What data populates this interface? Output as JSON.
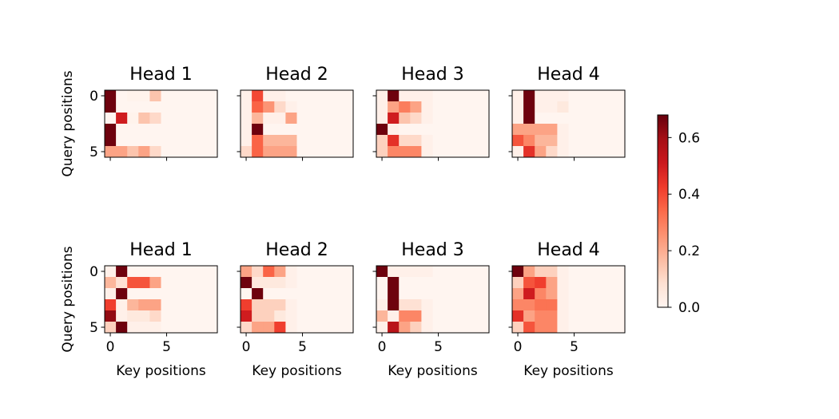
{
  "chart_data": {
    "type": "heatmap",
    "colormap": "Reds",
    "value_range": [
      0.0,
      0.68
    ],
    "colorbar": {
      "ticks": [
        0.0,
        0.2,
        0.4,
        0.6
      ],
      "tick_labels": [
        "0.0",
        "0.2",
        "0.4",
        "0.6"
      ]
    },
    "xlabel": "Key positions",
    "ylabel": "Query positions",
    "x_tick_labels": [
      "0",
      "5"
    ],
    "y_tick_labels": [
      "0",
      "5"
    ],
    "key_positions": 10,
    "query_positions": 6,
    "panels": [
      {
        "title": "Head 1",
        "row": 0,
        "matrix": [
          [
            0.67,
            0.0,
            0.01,
            0.01,
            0.15,
            0,
            0,
            0,
            0,
            0
          ],
          [
            0.67,
            0.0,
            0.0,
            0.0,
            0.0,
            0,
            0,
            0,
            0,
            0
          ],
          [
            0.0,
            0.5,
            0.01,
            0.15,
            0.1,
            0,
            0,
            0,
            0,
            0
          ],
          [
            0.67,
            0.0,
            0.0,
            0.0,
            0.0,
            0,
            0,
            0,
            0,
            0
          ],
          [
            0.67,
            0.0,
            0.0,
            0.0,
            0.0,
            0,
            0,
            0,
            0,
            0
          ],
          [
            0.22,
            0.22,
            0.15,
            0.22,
            0.1,
            0,
            0,
            0,
            0,
            0
          ]
        ]
      },
      {
        "title": "Head 2",
        "row": 0,
        "matrix": [
          [
            0.02,
            0.4,
            0.02,
            0.02,
            0.0,
            0,
            0,
            0,
            0,
            0
          ],
          [
            0.02,
            0.35,
            0.25,
            0.1,
            0.02,
            0,
            0,
            0,
            0,
            0
          ],
          [
            0.02,
            0.18,
            0.02,
            0.02,
            0.22,
            0,
            0,
            0,
            0,
            0
          ],
          [
            0.02,
            0.67,
            0.0,
            0.0,
            0.0,
            0,
            0,
            0,
            0,
            0
          ],
          [
            0.02,
            0.35,
            0.18,
            0.18,
            0.18,
            0,
            0,
            0,
            0,
            0
          ],
          [
            0.1,
            0.35,
            0.22,
            0.22,
            0.22,
            0,
            0,
            0,
            0,
            0
          ]
        ]
      },
      {
        "title": "Head 3",
        "row": 0,
        "matrix": [
          [
            0.02,
            0.67,
            0.02,
            0.02,
            0.02,
            0,
            0,
            0,
            0,
            0
          ],
          [
            0.02,
            0.22,
            0.3,
            0.22,
            0.02,
            0,
            0,
            0,
            0,
            0
          ],
          [
            0.02,
            0.5,
            0.15,
            0.1,
            0.02,
            0,
            0,
            0,
            0,
            0
          ],
          [
            0.67,
            0.02,
            0.0,
            0.0,
            0.0,
            0,
            0,
            0,
            0,
            0
          ],
          [
            0.12,
            0.45,
            0.1,
            0.1,
            0.02,
            0,
            0,
            0,
            0,
            0
          ],
          [
            0.12,
            0.28,
            0.28,
            0.28,
            0.02,
            0,
            0,
            0,
            0,
            0
          ]
        ]
      },
      {
        "title": "Head 4",
        "row": 0,
        "matrix": [
          [
            0.02,
            0.67,
            0.02,
            0.02,
            0.02,
            0,
            0,
            0,
            0,
            0
          ],
          [
            0.02,
            0.67,
            0.02,
            0.02,
            0.05,
            0,
            0,
            0,
            0,
            0
          ],
          [
            0.02,
            0.67,
            0.0,
            0.0,
            0.0,
            0,
            0,
            0,
            0,
            0
          ],
          [
            0.22,
            0.22,
            0.22,
            0.22,
            0.02,
            0,
            0,
            0,
            0,
            0
          ],
          [
            0.38,
            0.28,
            0.18,
            0.18,
            0.02,
            0,
            0,
            0,
            0,
            0
          ],
          [
            0.02,
            0.45,
            0.22,
            0.1,
            0.02,
            0,
            0,
            0,
            0,
            0
          ]
        ]
      },
      {
        "title": "Head 1",
        "row": 1,
        "matrix": [
          [
            0.02,
            0.67,
            0.0,
            0.0,
            0.0,
            0,
            0,
            0,
            0,
            0
          ],
          [
            0.18,
            0.08,
            0.38,
            0.38,
            0.22,
            0,
            0,
            0,
            0,
            0
          ],
          [
            0.02,
            0.67,
            0.0,
            0.0,
            0.0,
            0,
            0,
            0,
            0,
            0
          ],
          [
            0.42,
            0.02,
            0.18,
            0.22,
            0.22,
            0,
            0,
            0,
            0,
            0
          ],
          [
            0.62,
            0.02,
            0.05,
            0.05,
            0.1,
            0,
            0,
            0,
            0,
            0
          ],
          [
            0.12,
            0.67,
            0.02,
            0.02,
            0.02,
            0,
            0,
            0,
            0,
            0
          ]
        ]
      },
      {
        "title": "Head 2",
        "row": 1,
        "matrix": [
          [
            0.22,
            0.1,
            0.35,
            0.22,
            0.02,
            0,
            0,
            0,
            0,
            0
          ],
          [
            0.67,
            0.05,
            0.05,
            0.05,
            0.02,
            0,
            0,
            0,
            0,
            0
          ],
          [
            0.0,
            0.67,
            0.0,
            0.0,
            0.0,
            0,
            0,
            0,
            0,
            0
          ],
          [
            0.42,
            0.12,
            0.12,
            0.12,
            0.02,
            0,
            0,
            0,
            0,
            0
          ],
          [
            0.5,
            0.12,
            0.12,
            0.05,
            0.02,
            0,
            0,
            0,
            0,
            0
          ],
          [
            0.1,
            0.22,
            0.22,
            0.42,
            0.02,
            0,
            0,
            0,
            0,
            0
          ]
        ]
      },
      {
        "title": "Head 3",
        "row": 1,
        "matrix": [
          [
            0.67,
            0.02,
            0.02,
            0.02,
            0.02,
            0,
            0,
            0,
            0,
            0
          ],
          [
            0.0,
            0.67,
            0.0,
            0.0,
            0.0,
            0,
            0,
            0,
            0,
            0
          ],
          [
            0.0,
            0.67,
            0.0,
            0.0,
            0.0,
            0,
            0,
            0,
            0,
            0
          ],
          [
            0.02,
            0.67,
            0.08,
            0.08,
            0.02,
            0,
            0,
            0,
            0,
            0
          ],
          [
            0.18,
            0.02,
            0.28,
            0.28,
            0.02,
            0,
            0,
            0,
            0,
            0
          ],
          [
            0.02,
            0.55,
            0.22,
            0.12,
            0.02,
            0,
            0,
            0,
            0,
            0
          ]
        ]
      },
      {
        "title": "Head 4",
        "row": 1,
        "matrix": [
          [
            0.67,
            0.22,
            0.12,
            0.12,
            0.02,
            0,
            0,
            0,
            0,
            0
          ],
          [
            0.12,
            0.38,
            0.42,
            0.22,
            0.02,
            0,
            0,
            0,
            0,
            0
          ],
          [
            0.22,
            0.5,
            0.28,
            0.22,
            0.02,
            0,
            0,
            0,
            0,
            0
          ],
          [
            0.28,
            0.28,
            0.32,
            0.32,
            0.02,
            0,
            0,
            0,
            0,
            0
          ],
          [
            0.45,
            0.22,
            0.28,
            0.28,
            0.02,
            0,
            0,
            0,
            0,
            0
          ],
          [
            0.12,
            0.38,
            0.28,
            0.28,
            0.02,
            0,
            0,
            0,
            0,
            0
          ]
        ]
      }
    ]
  }
}
